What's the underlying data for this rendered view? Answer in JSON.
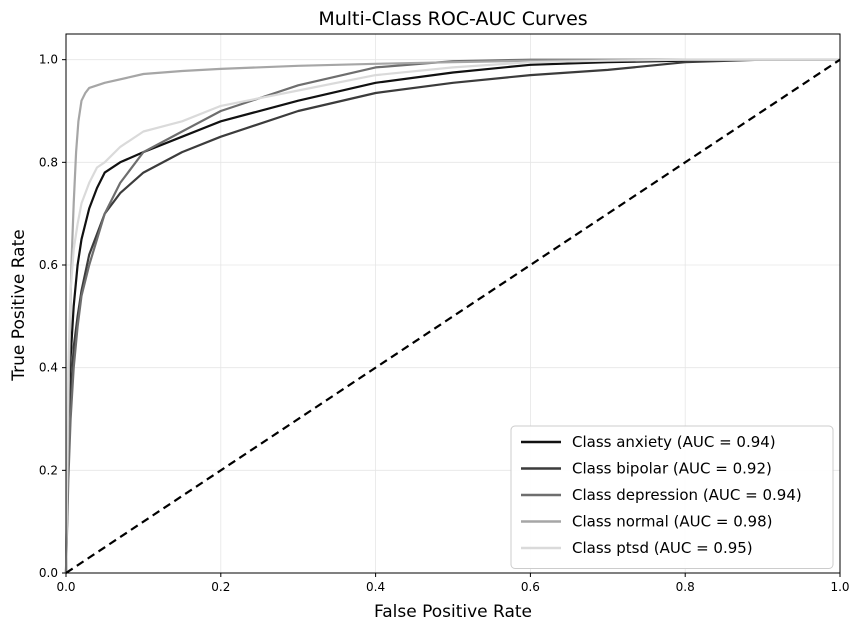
{
  "chart_data": {
    "type": "line",
    "title": "Multi-Class ROC-AUC Curves",
    "xlabel": "False Positive Rate",
    "ylabel": "True Positive Rate",
    "xlim": [
      0.0,
      1.0
    ],
    "ylim": [
      0.0,
      1.05
    ],
    "xticks": [
      "0.0",
      "0.2",
      "0.4",
      "0.6",
      "0.8",
      "1.0"
    ],
    "yticks": [
      "0.0",
      "0.2",
      "0.4",
      "0.6",
      "0.8",
      "1.0"
    ],
    "grid": true,
    "legend_position": "lower-right",
    "series": [
      {
        "name": "Class anxiety (AUC = 0.94)",
        "color": "#111111",
        "x": [
          0,
          0.003,
          0.006,
          0.01,
          0.015,
          0.02,
          0.03,
          0.04,
          0.05,
          0.07,
          0.1,
          0.15,
          0.2,
          0.3,
          0.4,
          0.5,
          0.6,
          0.7,
          0.8,
          0.9,
          1.0
        ],
        "y": [
          0,
          0.3,
          0.42,
          0.52,
          0.6,
          0.65,
          0.71,
          0.75,
          0.78,
          0.8,
          0.82,
          0.85,
          0.88,
          0.92,
          0.955,
          0.975,
          0.99,
          0.995,
          0.998,
          1.0,
          1.0
        ]
      },
      {
        "name": "Class bipolar (AUC = 0.92)",
        "color": "#3c3c3c",
        "x": [
          0,
          0.003,
          0.006,
          0.01,
          0.015,
          0.02,
          0.03,
          0.04,
          0.05,
          0.07,
          0.1,
          0.15,
          0.2,
          0.3,
          0.4,
          0.5,
          0.6,
          0.7,
          0.8,
          0.9,
          1.0
        ],
        "y": [
          0,
          0.22,
          0.34,
          0.44,
          0.5,
          0.55,
          0.62,
          0.66,
          0.7,
          0.74,
          0.78,
          0.82,
          0.85,
          0.9,
          0.935,
          0.955,
          0.97,
          0.98,
          0.995,
          1.0,
          1.0
        ]
      },
      {
        "name": "Class depression (AUC = 0.94)",
        "color": "#6e6e6e",
        "x": [
          0,
          0.003,
          0.006,
          0.01,
          0.015,
          0.02,
          0.03,
          0.04,
          0.05,
          0.07,
          0.1,
          0.15,
          0.2,
          0.3,
          0.4,
          0.5,
          0.6,
          0.7,
          0.8,
          0.9,
          1.0
        ],
        "y": [
          0,
          0.18,
          0.3,
          0.4,
          0.48,
          0.54,
          0.6,
          0.65,
          0.7,
          0.76,
          0.82,
          0.86,
          0.9,
          0.95,
          0.985,
          0.997,
          1.0,
          1.0,
          1.0,
          1.0,
          1.0
        ]
      },
      {
        "name": "Class normal (AUC = 0.98)",
        "color": "#a6a6a6",
        "x": [
          0,
          0.002,
          0.004,
          0.007,
          0.01,
          0.013,
          0.016,
          0.02,
          0.025,
          0.03,
          0.05,
          0.08,
          0.1,
          0.15,
          0.2,
          0.3,
          0.4,
          0.5,
          0.6,
          0.7,
          0.8,
          0.9,
          1.0
        ],
        "y": [
          0,
          0.2,
          0.4,
          0.6,
          0.72,
          0.82,
          0.88,
          0.92,
          0.935,
          0.945,
          0.955,
          0.965,
          0.972,
          0.978,
          0.982,
          0.988,
          0.992,
          0.995,
          0.998,
          0.999,
          1.0,
          1.0,
          1.0
        ]
      },
      {
        "name": "Class ptsd (AUC = 0.95)",
        "color": "#dadada",
        "x": [
          0,
          0.003,
          0.006,
          0.01,
          0.015,
          0.02,
          0.03,
          0.04,
          0.05,
          0.07,
          0.1,
          0.15,
          0.2,
          0.3,
          0.4,
          0.5,
          0.6,
          0.7,
          0.8,
          0.9,
          1.0
        ],
        "y": [
          0,
          0.4,
          0.55,
          0.63,
          0.68,
          0.72,
          0.76,
          0.79,
          0.8,
          0.83,
          0.86,
          0.88,
          0.91,
          0.94,
          0.97,
          0.985,
          0.995,
          0.998,
          1.0,
          1.0,
          1.0
        ]
      }
    ],
    "reference_line": {
      "x": [
        0,
        1
      ],
      "y": [
        0,
        1
      ],
      "color": "#000000",
      "style": "dashed"
    }
  }
}
